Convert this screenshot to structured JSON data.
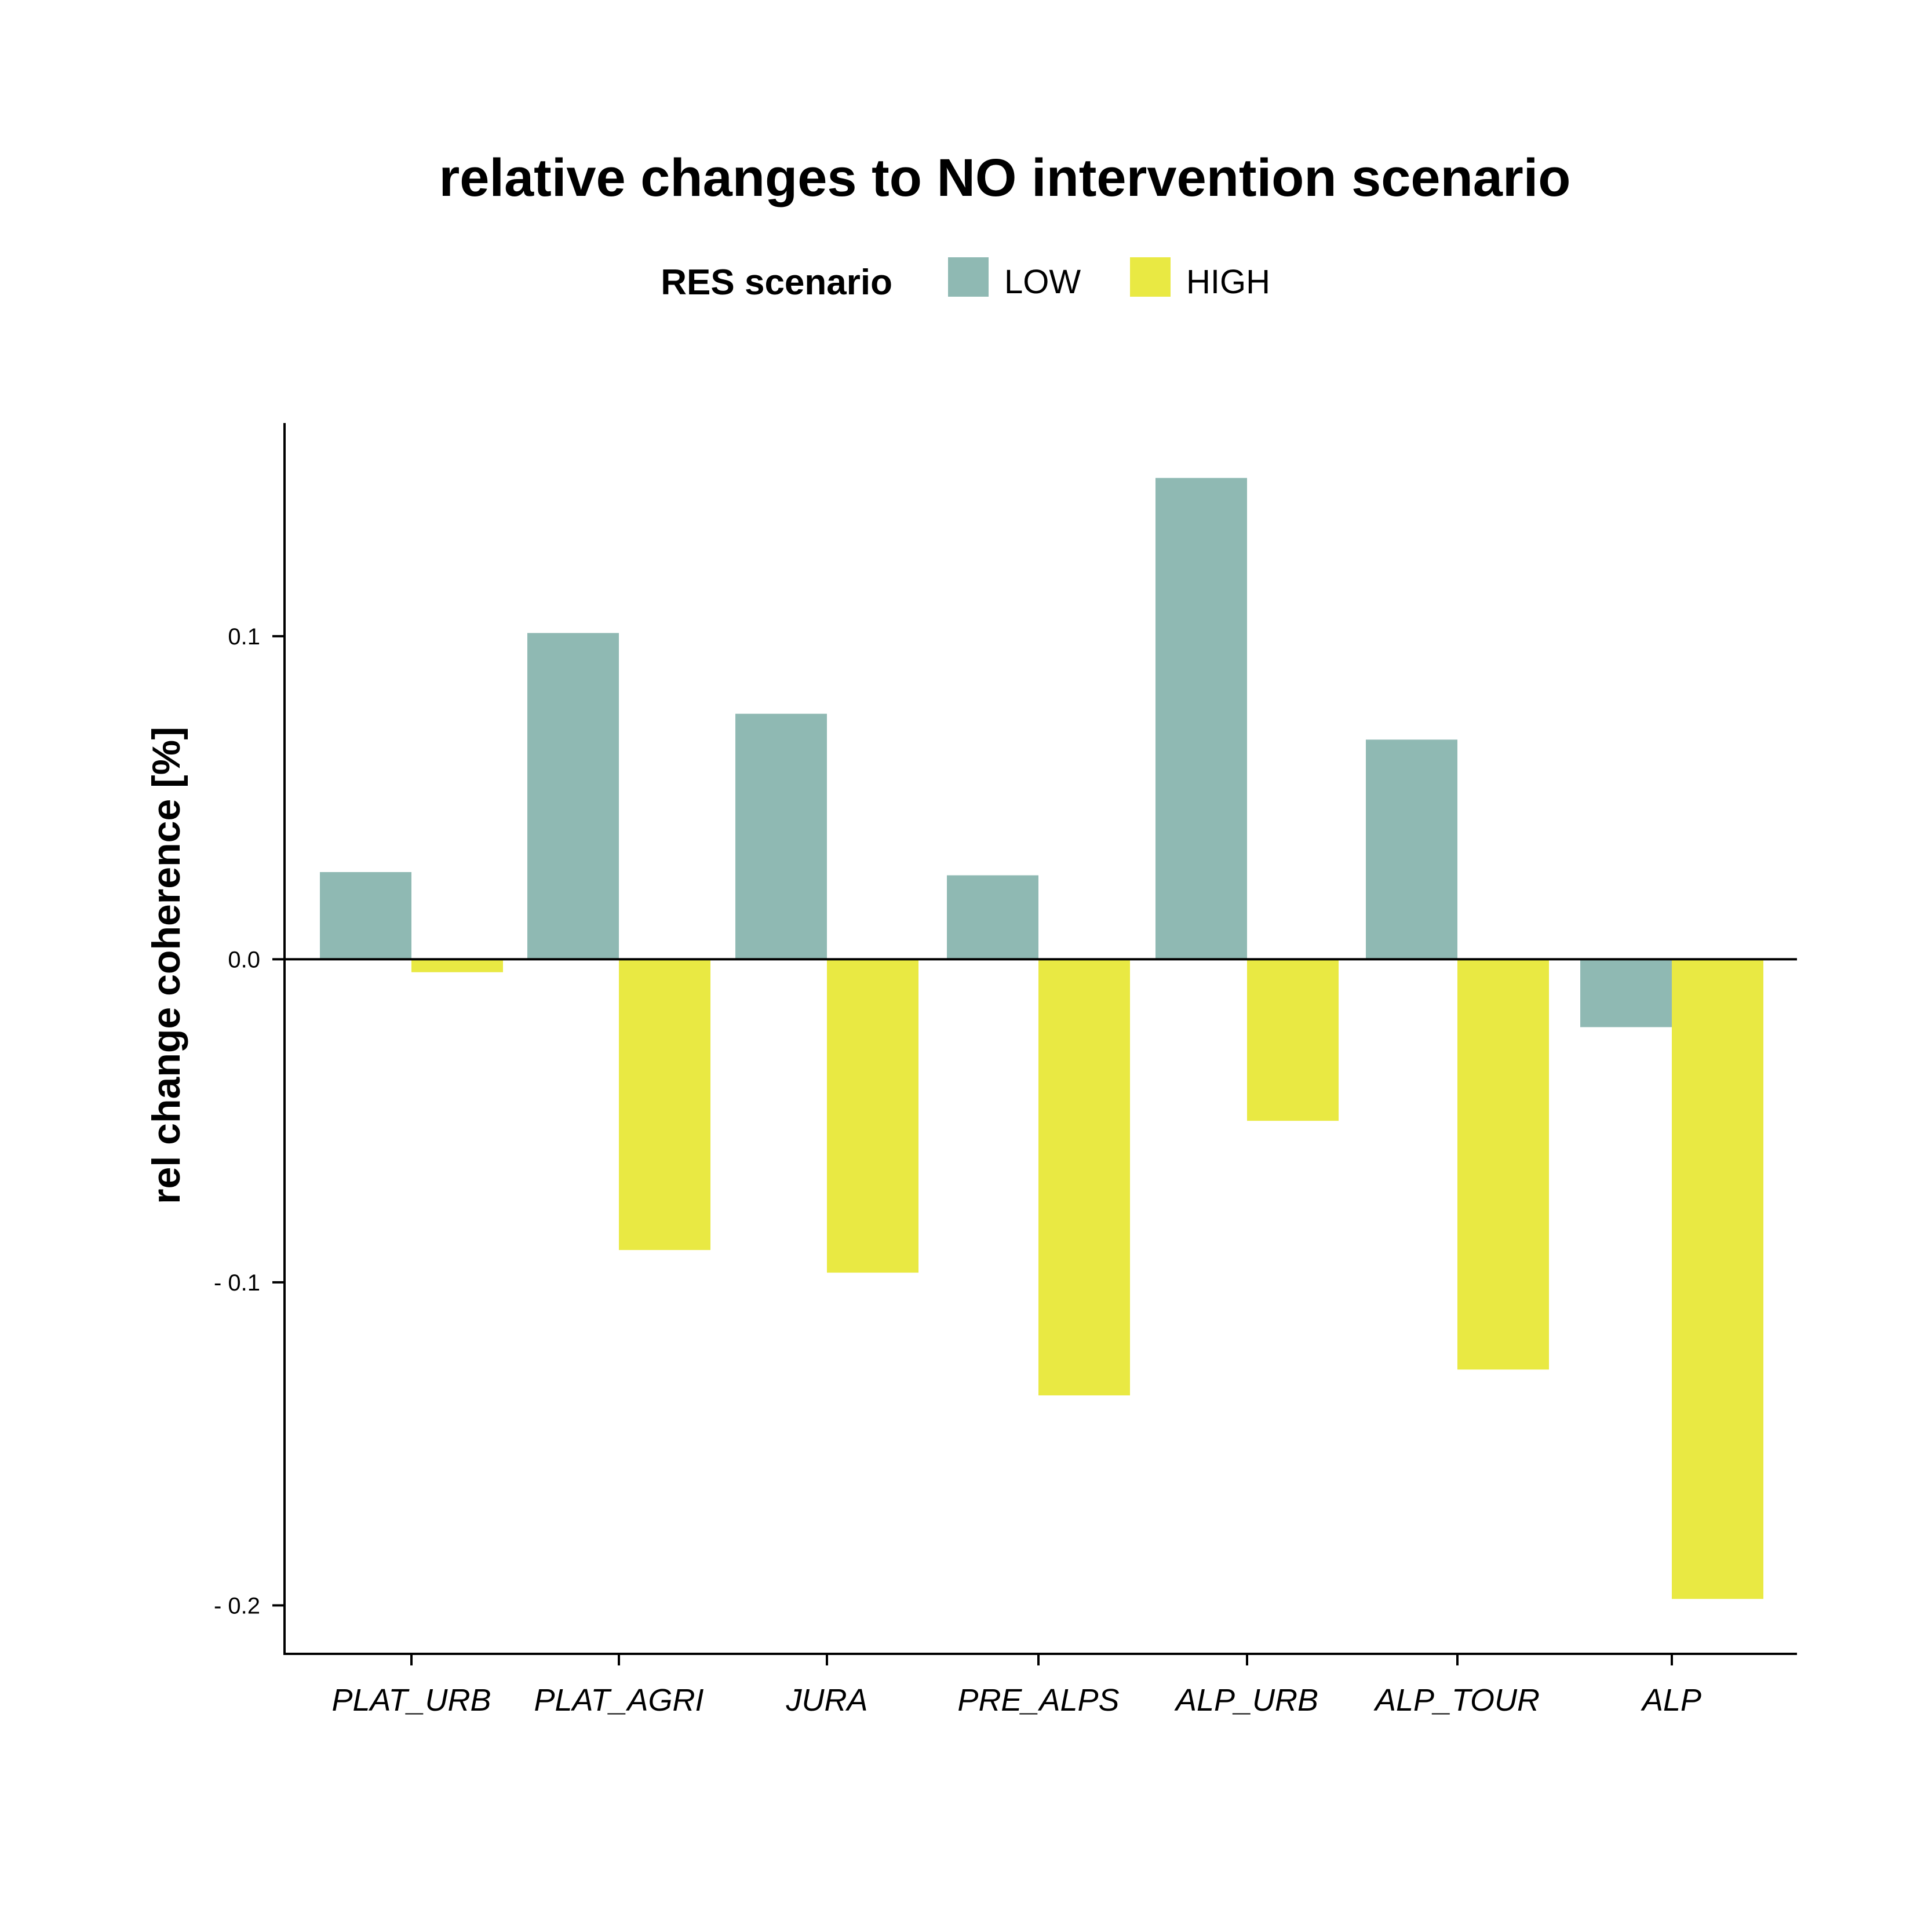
{
  "chart_data": {
    "type": "bar",
    "title": "relative changes to NO intervention scenario",
    "ylabel": "rel change coherence [%]",
    "xlabel": "",
    "ylim": [
      -0.215,
      0.166
    ],
    "yticks": [
      {
        "value": 0.1,
        "label": "0.1"
      },
      {
        "value": 0.0,
        "label": "0.0"
      },
      {
        "value": -0.1,
        "label": "- 0.1"
      },
      {
        "value": -0.2,
        "label": "- 0.2"
      }
    ],
    "legend": {
      "title": "RES scenario",
      "position": "top"
    },
    "grid": false,
    "categories": [
      "PLAT_URB",
      "PLAT_AGRI",
      "JURA",
      "PRE_ALPS",
      "ALP_URB",
      "ALP_TOUR",
      "ALP"
    ],
    "series": [
      {
        "name": "LOW",
        "color": "#8fb9b3",
        "values": [
          0.027,
          0.101,
          0.076,
          0.026,
          0.149,
          0.068,
          -0.021
        ]
      },
      {
        "name": "HIGH",
        "color": "#e9e943",
        "values": [
          -0.004,
          -0.09,
          -0.097,
          -0.135,
          -0.05,
          -0.127,
          -0.198
        ]
      }
    ]
  }
}
